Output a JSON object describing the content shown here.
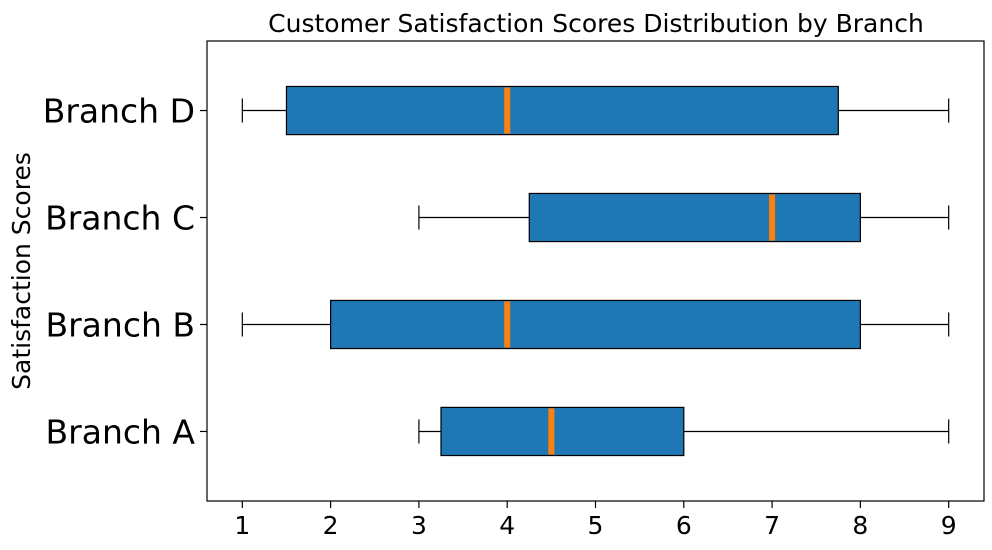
{
  "chart_data": {
    "type": "boxplot",
    "orientation": "horizontal",
    "title": "Customer Satisfaction Scores Distribution by Branch",
    "xlabel": "",
    "ylabel": "Satisfaction Scores",
    "xlim": [
      0.6,
      9.4
    ],
    "xticks": [
      1,
      2,
      3,
      4,
      5,
      6,
      7,
      8,
      9
    ],
    "categories": [
      "Branch A",
      "Branch B",
      "Branch C",
      "Branch D"
    ],
    "box_color": "#1f77b4",
    "median_color": "#ff7f0e",
    "grid": false,
    "boxes": [
      {
        "name": "Branch A",
        "whisker_low": 3,
        "q1": 3.25,
        "median": 4.5,
        "q3": 6,
        "whisker_high": 9
      },
      {
        "name": "Branch B",
        "whisker_low": 1,
        "q1": 2,
        "median": 4,
        "q3": 8,
        "whisker_high": 9
      },
      {
        "name": "Branch C",
        "whisker_low": 3,
        "q1": 4.25,
        "median": 7,
        "q3": 8,
        "whisker_high": 9
      },
      {
        "name": "Branch D",
        "whisker_low": 1,
        "q1": 1.5,
        "median": 4,
        "q3": 7.75,
        "whisker_high": 9
      }
    ]
  }
}
